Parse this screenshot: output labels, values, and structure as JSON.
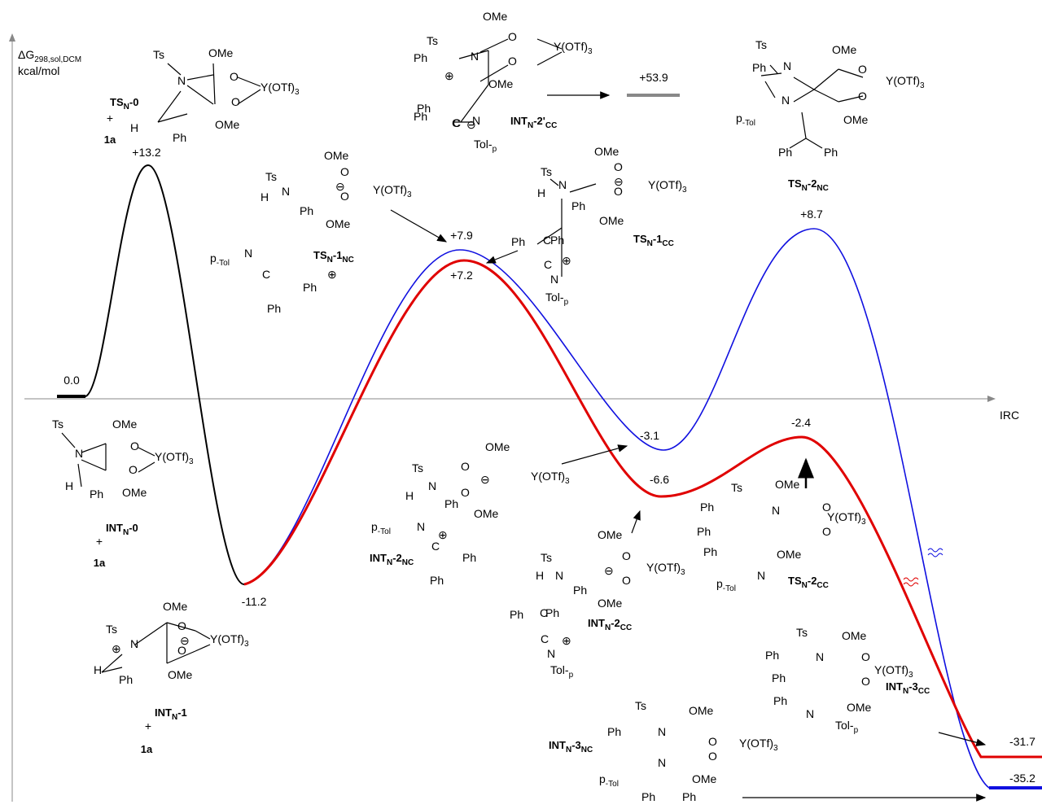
{
  "axis": {
    "y_label": [
      "ΔG",
      "298,sol,DCM"
    ],
    "y_unit": [
      "kcal/mol"
    ],
    "x_label": [
      "IRC"
    ]
  },
  "energies": [
    [
      "0.0"
    ],
    [
      "+13.2"
    ],
    [
      "-11.2"
    ],
    [
      "+7.9"
    ],
    [
      "+7.2"
    ],
    [
      "-3.1"
    ],
    [
      "-6.6"
    ],
    [
      "+8.7"
    ],
    [
      "-2.4"
    ],
    [
      "-31.7"
    ],
    [
      "-35.2"
    ],
    [
      "+53.9"
    ]
  ],
  "structures": [
    {
      "name": [
        "TS",
        "N",
        "-0"
      ],
      "extra": [
        [
          "+"
        ],
        [
          "1a"
        ]
      ],
      "texts": [
        [
          "Ts"
        ],
        [
          "OMe"
        ],
        [
          "N"
        ],
        [
          "O"
        ],
        [
          "O"
        ],
        [
          "Y(OTf)",
          "3"
        ],
        [
          "OMe"
        ],
        [
          "H"
        ],
        [
          "Ph"
        ]
      ]
    },
    {
      "name": [
        "INT",
        "N",
        "-0"
      ],
      "extra": [
        [
          "+"
        ],
        [
          "1a"
        ]
      ],
      "texts": [
        [
          "Ts"
        ],
        [
          "OMe"
        ],
        [
          "N"
        ],
        [
          "O"
        ],
        [
          "O"
        ],
        [
          "Y(OTf)",
          "3"
        ],
        [
          "OMe"
        ],
        [
          "H"
        ],
        [
          "Ph"
        ]
      ]
    },
    {
      "name": [
        "INT",
        "N",
        "-1"
      ],
      "extra": [
        [
          "+"
        ],
        [
          "1a"
        ]
      ],
      "texts": [
        [
          "OMe"
        ],
        [
          "Ts"
        ],
        [
          "N"
        ],
        [
          "O"
        ],
        [
          "O"
        ],
        [
          "Y(OTf)",
          "3"
        ],
        [
          "OMe"
        ],
        [
          "H"
        ],
        [
          "Ph"
        ],
        [
          "⊕"
        ],
        [
          "⊖"
        ]
      ]
    },
    {
      "name": [
        "TS",
        "N",
        "-1",
        "NC"
      ],
      "extra": [],
      "texts": [
        [
          "OMe"
        ],
        [
          "Ts"
        ],
        [
          "N"
        ],
        [
          "H"
        ],
        [
          "Ph"
        ],
        [
          "O"
        ],
        [
          "O"
        ],
        [
          "Y(OTf)",
          "3"
        ],
        [
          "OMe"
        ],
        [
          "p",
          "-Tol"
        ],
        [
          "N"
        ],
        [
          "C"
        ],
        [
          "Ph"
        ],
        [
          "Ph"
        ],
        [
          "⊕"
        ],
        [
          "⊖"
        ]
      ]
    },
    {
      "name": [
        "INT",
        "N",
        "-2'",
        "CC"
      ],
      "extra": [],
      "texts": [
        [
          "OMe"
        ],
        [
          "Ts"
        ],
        [
          "Ph"
        ],
        [
          "N"
        ],
        [
          "O"
        ],
        [
          "O"
        ],
        [
          "Y(OTf)",
          "3"
        ],
        [
          "OMe"
        ],
        [
          "Ph"
        ],
        [
          "Ph"
        ],
        [
          "C"
        ],
        [
          "C"
        ],
        [
          "N"
        ],
        [
          "Tol-",
          "p"
        ],
        [
          "⊕"
        ],
        [
          "⊖"
        ]
      ]
    },
    {
      "name": [
        "TS",
        "N",
        "-1",
        "CC"
      ],
      "extra": [],
      "texts": [
        [
          "OMe"
        ],
        [
          "Ts"
        ],
        [
          "N"
        ],
        [
          "H"
        ],
        [
          "Ph"
        ],
        [
          "O"
        ],
        [
          "O"
        ],
        [
          "Y(OTf)",
          "3"
        ],
        [
          "OMe"
        ],
        [
          "Ph"
        ],
        [
          "C"
        ],
        [
          "Ph"
        ],
        [
          "C"
        ],
        [
          "N"
        ],
        [
          "Tol-",
          "p"
        ],
        [
          "⊕"
        ],
        [
          "⊖"
        ]
      ]
    },
    {
      "name": [
        "TS",
        "N",
        "-2",
        "NC"
      ],
      "extra": [],
      "texts": [
        [
          "Ts"
        ],
        [
          "OMe"
        ],
        [
          "Ph"
        ],
        [
          "N"
        ],
        [
          "O"
        ],
        [
          "O"
        ],
        [
          "Y(OTf)",
          "3"
        ],
        [
          "N"
        ],
        [
          "p",
          "-Tol"
        ],
        [
          "OMe"
        ],
        [
          "Ph"
        ],
        [
          "Ph"
        ]
      ]
    },
    {
      "name": [
        "INT",
        "N",
        "-2",
        "NC"
      ],
      "extra": [],
      "texts": [
        [
          "OMe"
        ],
        [
          "Ts"
        ],
        [
          "N"
        ],
        [
          "O"
        ],
        [
          "O"
        ],
        [
          "Y(OTf)",
          "3"
        ],
        [
          "H"
        ],
        [
          "Ph"
        ],
        [
          "OMe"
        ],
        [
          "p",
          "-Tol"
        ],
        [
          "N"
        ],
        [
          "C"
        ],
        [
          "Ph"
        ],
        [
          "Ph"
        ],
        [
          "⊕"
        ],
        [
          "⊖"
        ]
      ]
    },
    {
      "name": [
        "INT",
        "N",
        "-2",
        "CC"
      ],
      "extra": [],
      "texts": [
        [
          "OMe"
        ],
        [
          "Ts"
        ],
        [
          "N"
        ],
        [
          "O"
        ],
        [
          "O"
        ],
        [
          "Y(OTf)",
          "3"
        ],
        [
          "H"
        ],
        [
          "Ph"
        ],
        [
          "OMe"
        ],
        [
          "Ph"
        ],
        [
          "C"
        ],
        [
          "Ph"
        ],
        [
          "C"
        ],
        [
          "N"
        ],
        [
          "Tol-",
          "p"
        ],
        [
          "⊕"
        ],
        [
          "⊖"
        ]
      ]
    },
    {
      "name": [
        "TS",
        "N",
        "-2",
        "CC"
      ],
      "extra": [],
      "texts": [
        [
          "Ts"
        ],
        [
          "OMe"
        ],
        [
          "N"
        ],
        [
          "Ph"
        ],
        [
          "O"
        ],
        [
          "O"
        ],
        [
          "Y(OTf)",
          "3"
        ],
        [
          "Ph"
        ],
        [
          "Ph"
        ],
        [
          "OMe"
        ],
        [
          "N"
        ],
        [
          "p",
          "-Tol"
        ]
      ]
    },
    {
      "name": [
        "INT",
        "N",
        "-3",
        "CC"
      ],
      "extra": [],
      "texts": [
        [
          "Ts"
        ],
        [
          "OMe"
        ],
        [
          "N"
        ],
        [
          "Ph"
        ],
        [
          "O"
        ],
        [
          "O"
        ],
        [
          "Y(OTf)",
          "3"
        ],
        [
          "Ph"
        ],
        [
          "Ph"
        ],
        [
          "OMe"
        ],
        [
          "N"
        ],
        [
          "Tol-",
          "p"
        ]
      ]
    },
    {
      "name": [
        "INT",
        "N",
        "-3",
        "NC"
      ],
      "extra": [],
      "texts": [
        [
          "Ts"
        ],
        [
          "OMe"
        ],
        [
          "Ph"
        ],
        [
          "N"
        ],
        [
          "O"
        ],
        [
          "O"
        ],
        [
          "Y(OTf)",
          "3"
        ],
        [
          "N"
        ],
        [
          "p",
          "-Tol"
        ],
        [
          "OMe"
        ],
        [
          "Ph"
        ],
        [
          "Ph"
        ]
      ]
    }
  ]
}
